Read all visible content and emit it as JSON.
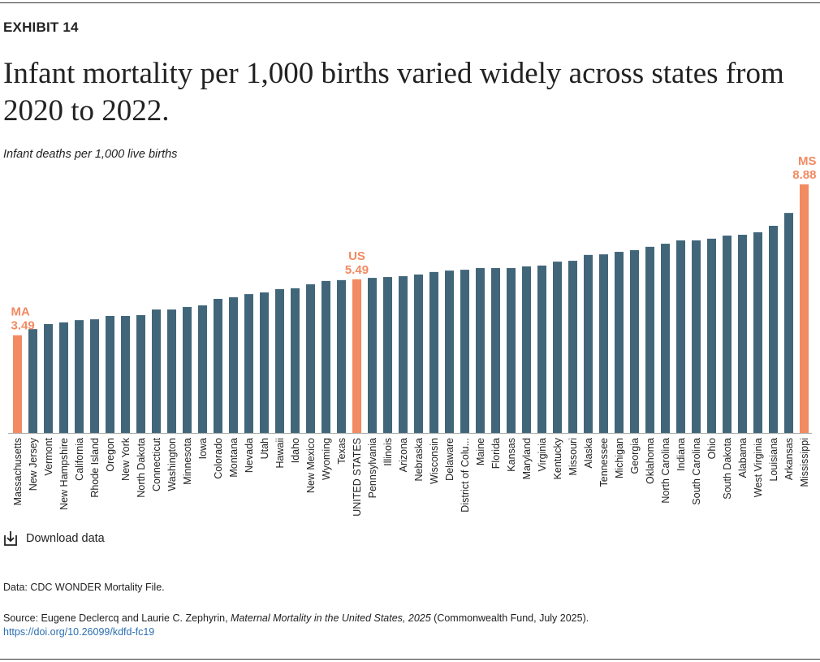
{
  "exhibit_label": "EXHIBIT 14",
  "title": "Infant mortality per 1,000 births varied widely across states from 2020 to 2022.",
  "download_label": "Download data",
  "data_note": "Data: CDC WONDER Mortality File.",
  "source": {
    "prefix": "Source: Eugene Declercq and Laurie C. Zephyrin, ",
    "title": "Maternal Mortality in the United States, 2025",
    "suffix": " (Commonwealth Fund, July 2025).",
    "link": "https://doi.org/10.26099/kdfd-fc19"
  },
  "colors": {
    "bar": "#41667a",
    "highlight": "#f28a62",
    "text": "#222222"
  },
  "chart_data": {
    "type": "bar",
    "title": "Infant mortality per 1,000 births varied widely across states from 2020 to 2022.",
    "ylabel": "Infant deaths per 1,000 live births",
    "xlabel": "",
    "ylim": [
      0,
      8.88
    ],
    "grid": false,
    "categories": [
      "Massachusetts",
      "New Jersey",
      "Vermont",
      "New Hampshire",
      "California",
      "Rhode Island",
      "Oregon",
      "New York",
      "North Dakota",
      "Connecticut",
      "Washington",
      "Minnesota",
      "Iowa",
      "Colorado",
      "Montana",
      "Nevada",
      "Utah",
      "Hawaii",
      "Idaho",
      "New Mexico",
      "Wyoming",
      "Texas",
      "UNITED STATES",
      "Pennsylvania",
      "Illinois",
      "Arizona",
      "Nebraska",
      "Wisconsin",
      "Delaware",
      "District of Colu...",
      "Maine",
      "Florida",
      "Kansas",
      "Maryland",
      "Virginia",
      "Kentucky",
      "Missouri",
      "Alaska",
      "Tennessee",
      "Michigan",
      "Georgia",
      "Oklahoma",
      "North Carolina",
      "Indiana",
      "South Carolina",
      "Ohio",
      "South Dakota",
      "Alabama",
      "West Virginia",
      "Louisiana",
      "Arkansas",
      "Mississippi"
    ],
    "values": [
      3.49,
      3.71,
      3.89,
      3.95,
      4.03,
      4.06,
      4.18,
      4.18,
      4.21,
      4.41,
      4.41,
      4.5,
      4.56,
      4.79,
      4.85,
      4.96,
      5.02,
      5.14,
      5.17,
      5.31,
      5.43,
      5.46,
      5.49,
      5.54,
      5.57,
      5.6,
      5.66,
      5.75,
      5.8,
      5.83,
      5.89,
      5.89,
      5.89,
      5.95,
      5.98,
      6.12,
      6.15,
      6.36,
      6.38,
      6.47,
      6.53,
      6.65,
      6.76,
      6.88,
      6.88,
      6.94,
      7.05,
      7.08,
      7.17,
      7.4,
      7.86,
      8.88
    ],
    "highlighted": [
      0,
      22,
      51
    ],
    "annotations": [
      {
        "category": "Massachusetts",
        "abbr": "MA",
        "value": "3.49"
      },
      {
        "category": "UNITED STATES",
        "abbr": "US",
        "value": "5.49"
      },
      {
        "category": "Mississippi",
        "abbr": "MS",
        "value": "8.88"
      }
    ]
  }
}
